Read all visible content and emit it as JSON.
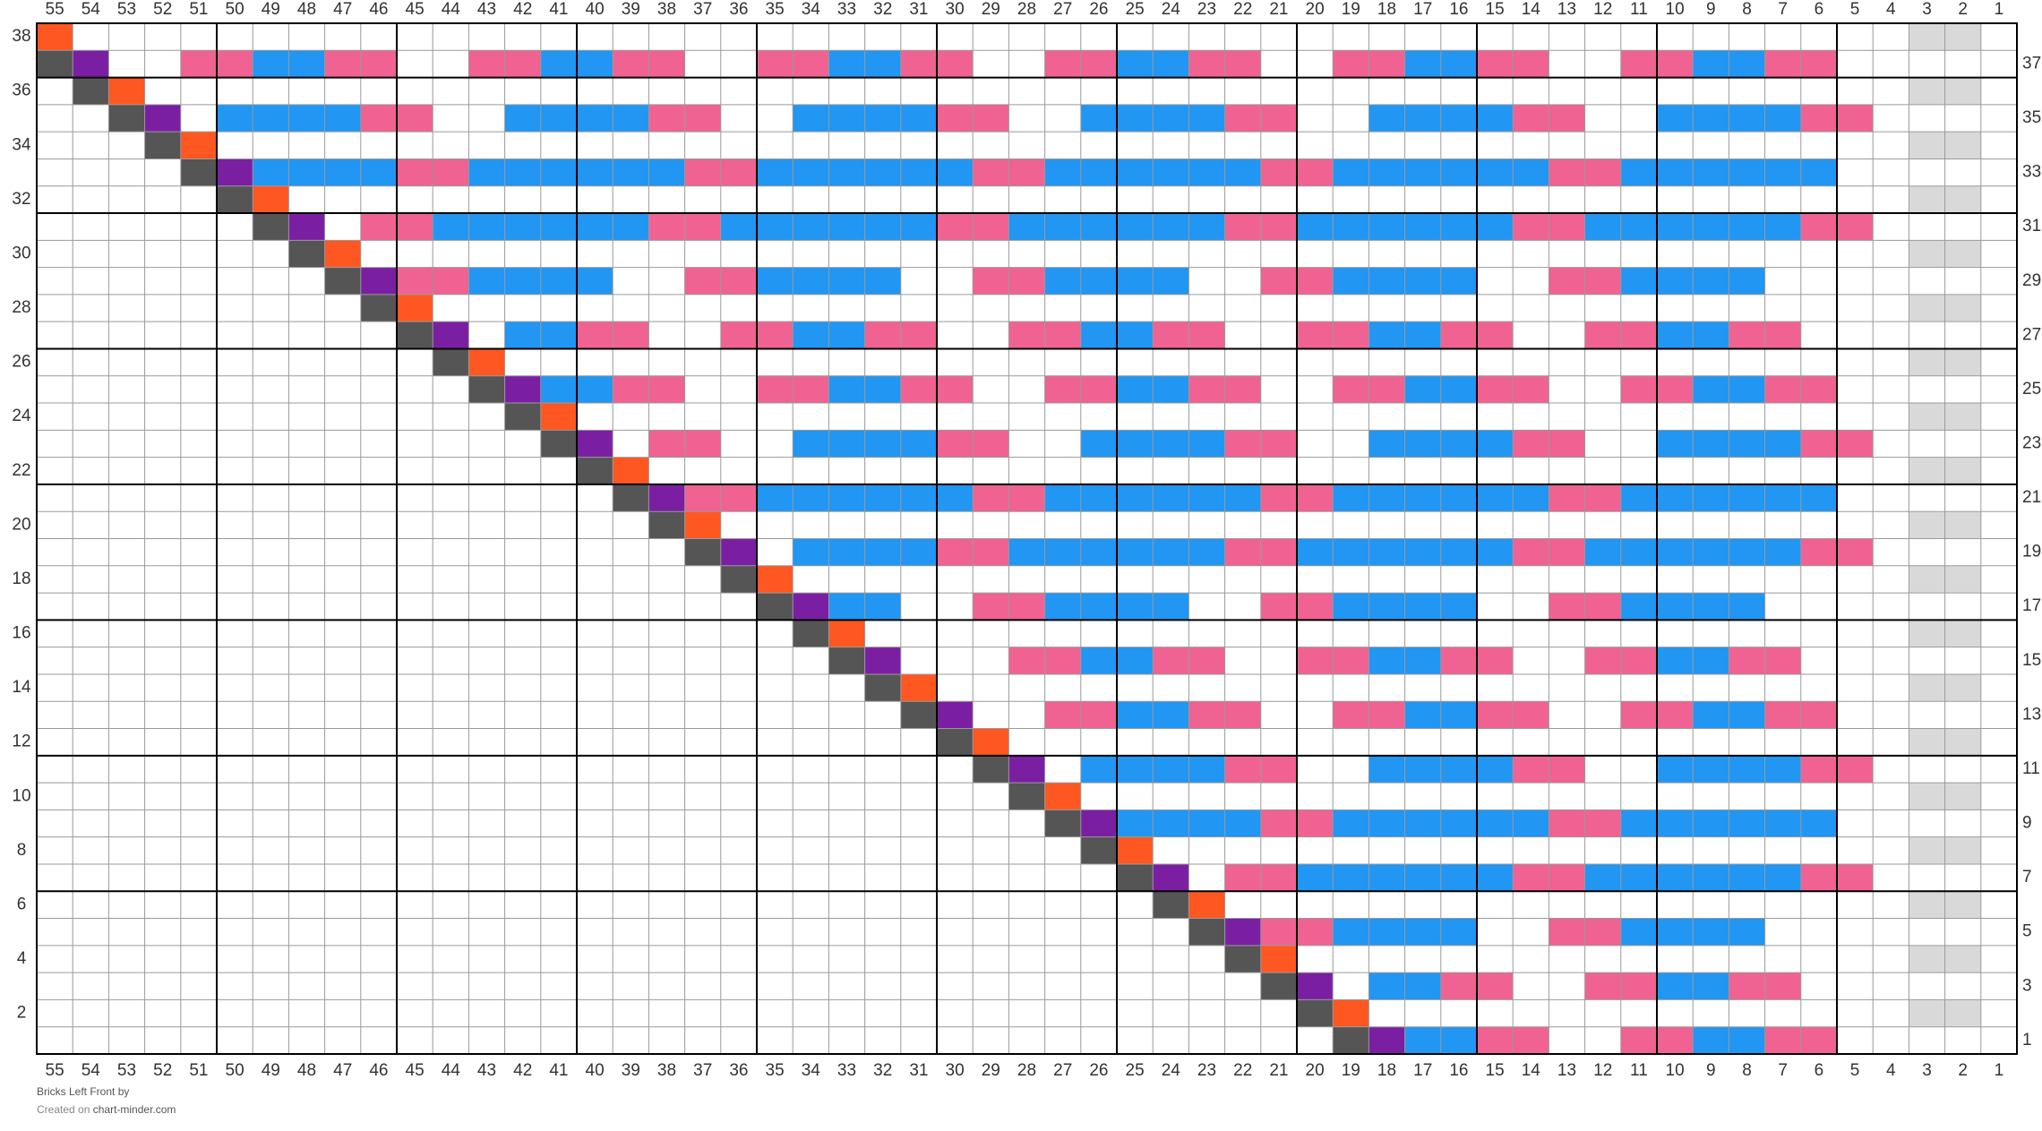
{
  "column_labels": [
    55,
    54,
    53,
    52,
    51,
    50,
    49,
    48,
    47,
    46,
    45,
    44,
    43,
    42,
    41,
    40,
    39,
    38,
    37,
    36,
    35,
    34,
    33,
    32,
    31,
    30,
    29,
    28,
    27,
    26,
    25,
    24,
    23,
    22,
    21,
    20,
    19,
    18,
    17,
    16,
    15,
    14,
    13,
    12,
    11,
    10,
    9,
    8,
    7,
    6,
    5,
    4,
    3,
    2,
    1
  ],
  "row_labels_left": [
    38,
    36,
    34,
    32,
    30,
    28,
    26,
    24,
    22,
    20,
    18,
    16,
    14,
    12,
    10,
    8,
    6,
    4,
    2
  ],
  "row_labels_right": [
    37,
    35,
    33,
    31,
    29,
    27,
    25,
    23,
    21,
    19,
    17,
    15,
    13,
    11,
    9,
    7,
    5,
    3,
    1
  ],
  "palette": {
    ".": "#ffffff",
    "g": "#d9d9d9",
    "D": "#555555",
    "O": "#ff5722",
    "V": "#7b1fa2",
    "P": "#f06292",
    "B": "#2196f3"
  },
  "rows": [
    "O...................................................gg.",
    "DV..PPBBPP..PPBBPP..PPBBPP..PPBBPP..PPBBPP..PPBBPP.....",
    ".DO.................................................gg.",
    "..DV.BBBBPP..BBBBPP..BBBBPP..BBBBPP..BBBBPP..BBBBPP....",
    "...DO...............................................gg.",
    "....DVBBBBPPBBBBBBPPBBBBBBPPBBBBBBPPBBBBBBPPBBBBBB.....",
    ".....DO.............................................gg.",
    "......DV.PPBBBBBBPPBBBBBBPPBBBBBBPPBBBBBBPPBBBBBBPP....",
    ".......DO...........................................gg.",
    "........DVPPBBBB..PPBBBB..PPBBBB..PPBBBB..PPBBBB.......",
    ".........DO.........................................gg.",
    "..........DV.BBPP..PPBBPP..PPBBPP..PPBBPP..PPBBPP......",
    "...........DO.......................................gg.",
    "............DVBBPP..PPBBPP..PPBBPP..PPBBPP..PPBBPP.....",
    ".............DO.....................................gg.",
    "..............DV.PP..BBBBPP..BBBBPP..BBBBPP..BBBBPP....",
    "...............DO...................................gg.",
    "................DVPPBBBBBBPPBBBBBBPPBBBBBBPPBBBBBB.....",
    ".................DO.................................gg.",
    "..................DV.BBBBPPBBBBBBPPBBBBBBPPBBBBBBPP....",
    "...................DO...............................gg.",
    "....................DVBB..PPBBBB..PPBBBB..PPBBBB.......",
    ".....................DO.............................gg.",
    "......................DV...PPBBPP..PPBBPP..PPBBPP......",
    ".......................DO...........................gg.",
    "........................DV..PPBBPP..PPBBPP..PPBBPP.....",
    ".........................DO.........................gg.",
    "..........................DV.BBBBPP..BBBBPP..BBBBPP....",
    "...........................DO.......................gg.",
    "............................DVBBBBPPBBBBBBPPBBBBBB.....",
    ".............................DO.....................gg.",
    "..............................DV.PPBBBBBBPPBBBBBBPP....",
    "...............................DO...................gg.",
    "................................DVPPBBBB..PPBBBB.......",
    ".................................DO.................gg.",
    "..................................DV.BBPP..PPBBPP......",
    "...................................DO...............gg.",
    "....................................DVBBPP..PPBBPP....."
  ],
  "footer": {
    "title": "Bricks Left Front",
    "by": "by",
    "created": "Created on",
    "site": "chart-minder.com"
  }
}
